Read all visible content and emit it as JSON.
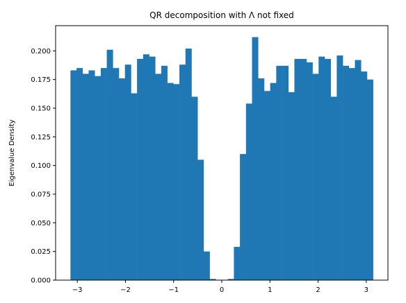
{
  "chart_data": {
    "type": "bar",
    "title": "QR decomposition with Λ not fixed",
    "xlabel": "",
    "ylabel": "Eigenvalue Density",
    "xlim": [
      -3.45,
      3.45
    ],
    "ylim": [
      0,
      0.222
    ],
    "grid": false,
    "legend": "none",
    "bar_color": "#1f77b4",
    "bin_edges": [
      -3.1416,
      3.1416
    ],
    "x_ticks": [
      -3,
      -2,
      -1,
      0,
      1,
      2,
      3
    ],
    "x_tick_labels": [
      "−3",
      "−2",
      "−1",
      "0",
      "1",
      "2",
      "3"
    ],
    "y_ticks": [
      0,
      0.025,
      0.05,
      0.075,
      0.1,
      0.125,
      0.15,
      0.175,
      0.2
    ],
    "y_tick_labels": [
      "0.000",
      "0.025",
      "0.050",
      "0.075",
      "0.100",
      "0.125",
      "0.150",
      "0.175",
      "0.200"
    ],
    "values": [
      0.183,
      0.185,
      0.18,
      0.183,
      0.178,
      0.185,
      0.201,
      0.185,
      0.176,
      0.188,
      0.163,
      0.193,
      0.197,
      0.195,
      0.18,
      0.187,
      0.172,
      0.171,
      0.188,
      0.202,
      0.16,
      0.105,
      0.025,
      0.001,
      0.0,
      0.0,
      0.001,
      0.029,
      0.11,
      0.154,
      0.212,
      0.176,
      0.165,
      0.172,
      0.187,
      0.187,
      0.164,
      0.193,
      0.193,
      0.19,
      0.18,
      0.195,
      0.193,
      0.16,
      0.196,
      0.187,
      0.185,
      0.192,
      0.182,
      0.175
    ]
  }
}
